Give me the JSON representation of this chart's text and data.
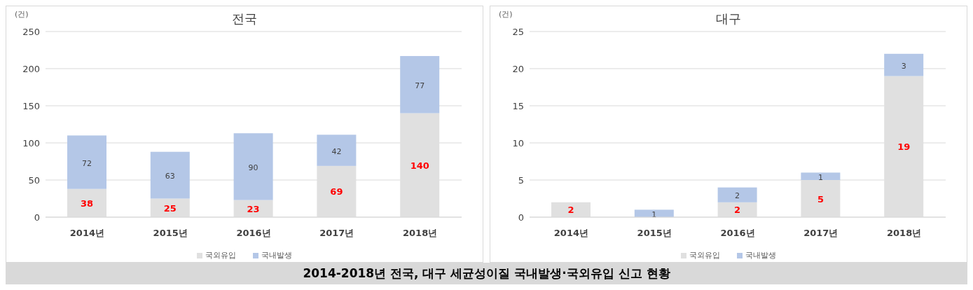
{
  "chart_data": [
    {
      "type": "bar",
      "title": "전국",
      "ylabel": "(건)",
      "stacked": true,
      "categories": [
        "2014년",
        "2015년",
        "2016년",
        "2017년",
        "2018년"
      ],
      "series": [
        {
          "name": "국외유입",
          "color": "#e0e0e0",
          "values": [
            38,
            25,
            23,
            69,
            140
          ]
        },
        {
          "name": "국내발생",
          "color": "#b4c7e7",
          "values": [
            72,
            63,
            90,
            42,
            77
          ]
        }
      ],
      "ylim": [
        0,
        250
      ],
      "yticks": [
        0,
        50,
        100,
        150,
        200,
        250
      ],
      "grid": "y",
      "legend": "bottom",
      "data_labels": true,
      "annotations": [
        "2014-2018년 전국, 대구 세균성이질 국내발생·국외유입 신고 현황"
      ]
    },
    {
      "type": "bar",
      "title": "대구",
      "ylabel": "(건)",
      "stacked": true,
      "categories": [
        "2014년",
        "2015년",
        "2016년",
        "2017년",
        "2018년"
      ],
      "series": [
        {
          "name": "국외유입",
          "color": "#e0e0e0",
          "values": [
            2,
            0,
            2,
            5,
            19
          ],
          "value_labels": [
            "2",
            null,
            "2",
            "5",
            "19"
          ]
        },
        {
          "name": "국내발생",
          "color": "#b4c7e7",
          "values": [
            0,
            1,
            2,
            1,
            3
          ],
          "value_labels": [
            null,
            "1",
            "2",
            "1",
            "3"
          ]
        }
      ],
      "ylim": [
        0,
        25
      ],
      "yticks": [
        0,
        5,
        10,
        15,
        20,
        25
      ],
      "grid": "y",
      "legend": "bottom"
    }
  ]
}
